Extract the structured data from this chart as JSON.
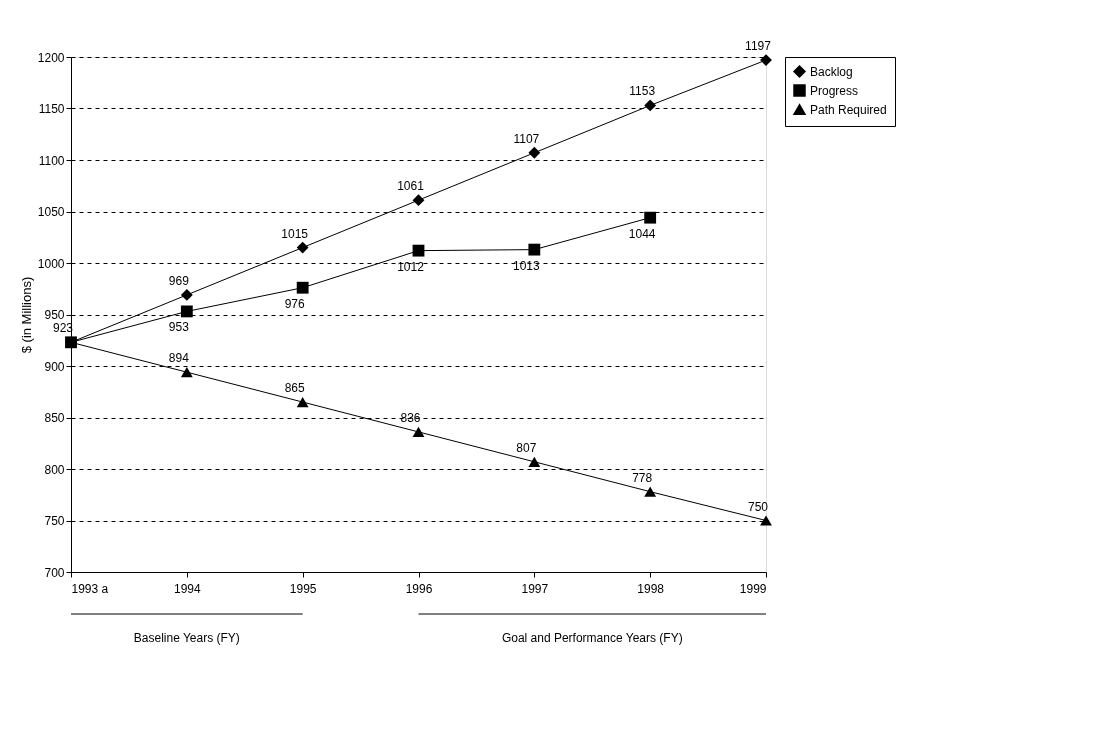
{
  "chart_data": {
    "type": "line",
    "ylabel": "$ (in Millions)",
    "categories": [
      "1993 a",
      "1994",
      "1995",
      "1996",
      "1997",
      "1998",
      "1999"
    ],
    "series": [
      {
        "name": "Backlog",
        "color": "#000000",
        "marker": "diamond",
        "values": [
          923,
          969,
          1015,
          1061,
          1107,
          1153,
          1197
        ],
        "value_labels": [
          "923",
          "969",
          "1015",
          "1061",
          "1107",
          "1153",
          "1197"
        ]
      },
      {
        "name": "Progress",
        "color": "#000000",
        "marker": "square",
        "values": [
          923,
          953,
          976,
          1012,
          1013,
          1044,
          null
        ],
        "value_labels": [
          null,
          "953",
          "976",
          "1012",
          "1013",
          "1044",
          null
        ]
      },
      {
        "name": "Path Required",
        "color": "#000000",
        "marker": "triangle",
        "values": [
          923,
          894,
          865,
          836,
          807,
          778,
          750
        ],
        "value_labels": [
          null,
          "894",
          "865",
          "836",
          "807",
          "778",
          "750"
        ]
      }
    ],
    "ylim": [
      700,
      1200
    ],
    "yticks": [
      700,
      750,
      800,
      850,
      900,
      950,
      1000,
      1050,
      1100,
      1150,
      1200
    ],
    "grid": "y",
    "legend": "right",
    "line_style": "solid",
    "annotations": [
      "Baseline Years (FY)",
      "Goal and Performance Years (FY)"
    ]
  }
}
